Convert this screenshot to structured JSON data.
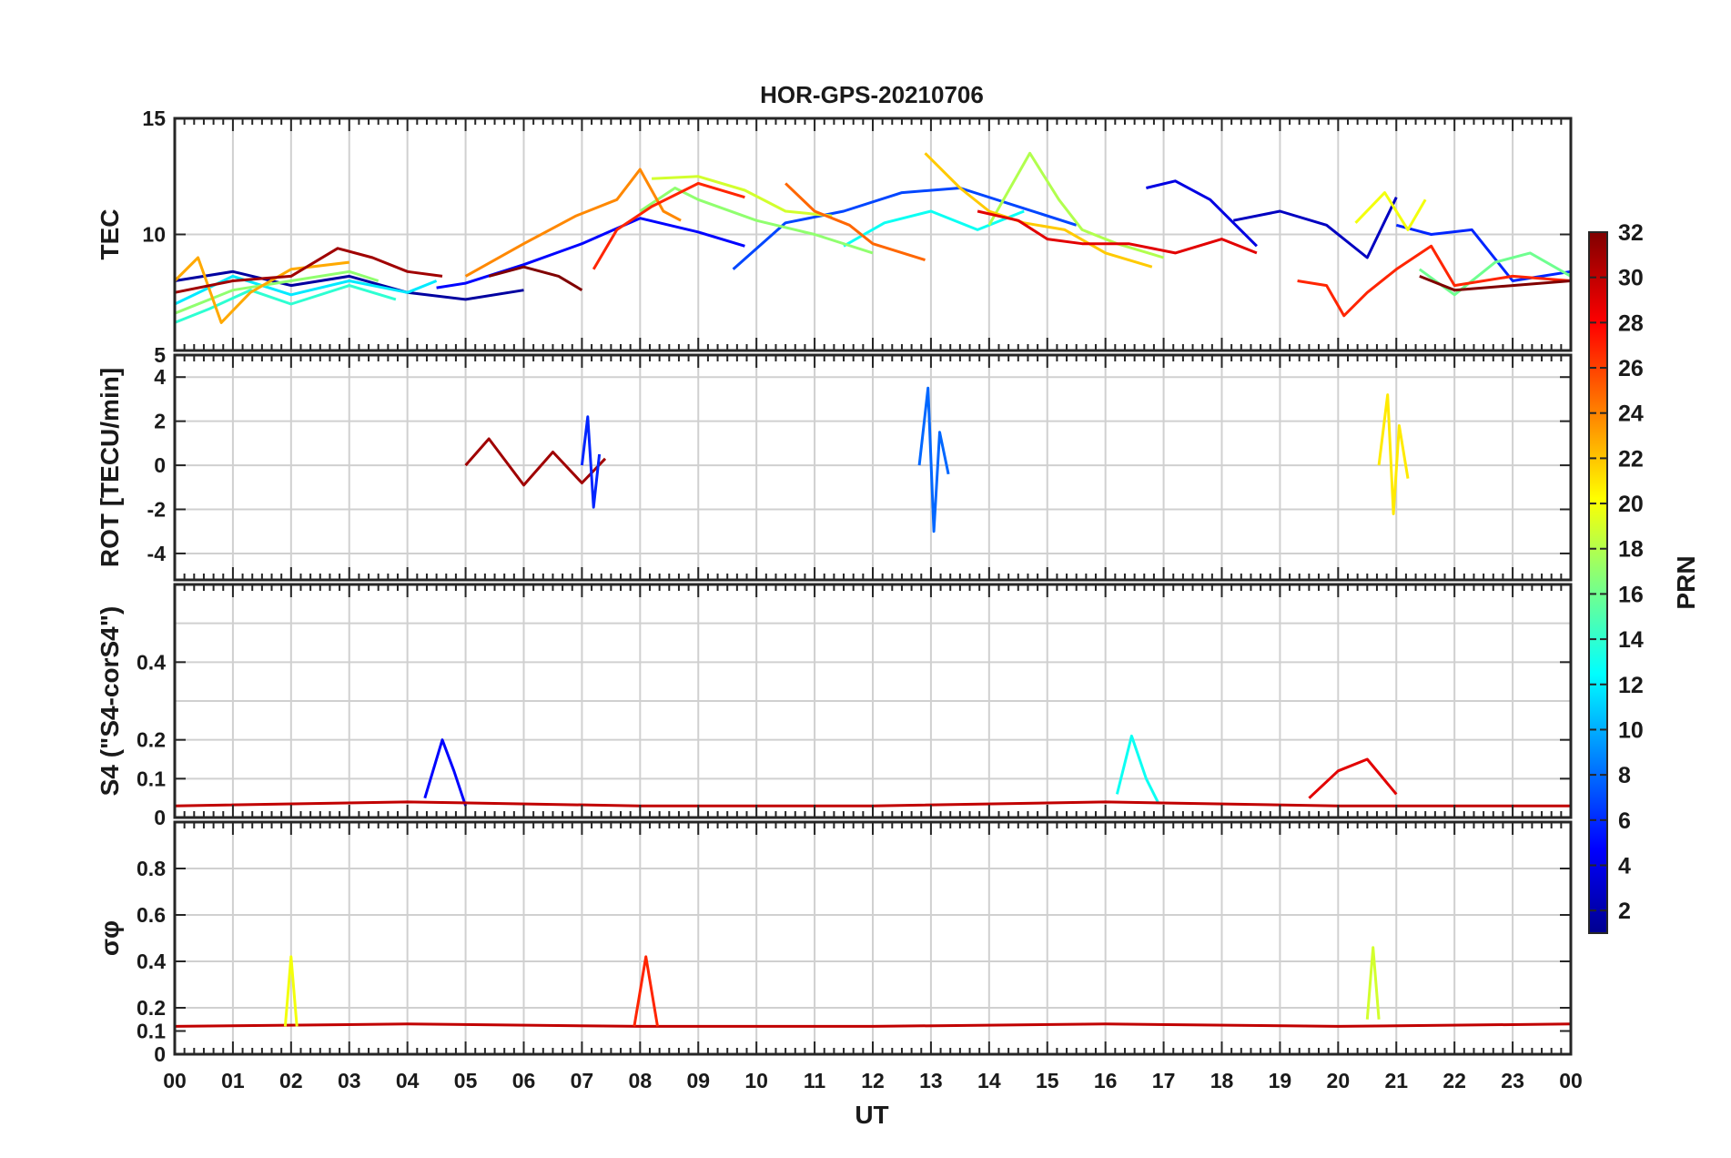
{
  "chart_data": {
    "type": "line",
    "title": "HOR-GPS-20210706",
    "xlabel": "UT",
    "x_range_hours": [
      0,
      24
    ],
    "x_tick_labels": [
      "00",
      "01",
      "02",
      "03",
      "04",
      "05",
      "06",
      "07",
      "08",
      "09",
      "10",
      "11",
      "12",
      "13",
      "14",
      "15",
      "16",
      "17",
      "18",
      "19",
      "20",
      "21",
      "22",
      "23",
      "00"
    ],
    "colorbar": {
      "label": "PRN",
      "range": [
        1,
        32
      ],
      "tick_labels": [
        "2",
        "4",
        "6",
        "8",
        "10",
        "12",
        "14",
        "16",
        "18",
        "20",
        "22",
        "24",
        "26",
        "28",
        "30",
        "32"
      ],
      "colormap": "jet"
    },
    "panels": [
      {
        "id": "tec",
        "ylabel": "TEC",
        "ylim": [
          5,
          15
        ],
        "y_ticks": [
          10,
          15
        ],
        "y_tick_labels": [
          "10",
          "15"
        ],
        "y_grid": [
          10
        ],
        "series": [
          {
            "name": "PRN 2",
            "prn": 2,
            "t": [
              0.0,
              1.0,
              2.0,
              3.0,
              4.0,
              5.0,
              6.0
            ],
            "v": [
              8.0,
              8.4,
              7.8,
              8.2,
              7.5,
              7.2,
              7.6
            ]
          },
          {
            "name": "PRN 5",
            "prn": 5,
            "t": [
              4.5,
              5.0,
              6.0,
              7.0,
              8.0,
              9.0,
              9.8
            ],
            "v": [
              7.7,
              7.9,
              8.7,
              9.6,
              10.7,
              10.1,
              9.5
            ]
          },
          {
            "name": "PRN 7",
            "prn": 7,
            "t": [
              9.6,
              10.5,
              11.5,
              12.5,
              13.5,
              14.5,
              15.5
            ],
            "v": [
              8.5,
              10.5,
              11.0,
              11.8,
              12.0,
              11.2,
              10.4
            ]
          },
          {
            "name": "PRN 4",
            "prn": 4,
            "t": [
              16.7,
              17.2,
              17.8,
              18.2,
              18.6
            ],
            "v": [
              12.0,
              12.3,
              11.5,
              10.5,
              9.5
            ]
          },
          {
            "name": "PRN 3",
            "prn": 3,
            "t": [
              18.2,
              19.0,
              19.8,
              20.5,
              21.0
            ],
            "v": [
              10.6,
              11.0,
              10.4,
              9.0,
              11.6
            ]
          },
          {
            "name": "PRN 6",
            "prn": 6,
            "t": [
              21.0,
              21.6,
              22.3,
              23.0,
              24.0
            ],
            "v": [
              10.4,
              10.0,
              10.2,
              8.0,
              8.4
            ]
          },
          {
            "name": "PRN 12",
            "prn": 12,
            "t": [
              0.0,
              1.0,
              2.0,
              3.0,
              4.0,
              4.5
            ],
            "v": [
              7.0,
              8.2,
              7.4,
              8.0,
              7.5,
              8.0
            ]
          },
          {
            "name": "PRN 14",
            "prn": 14,
            "t": [
              0.0,
              0.6,
              1.3,
              2.0,
              3.0,
              3.8
            ],
            "v": [
              6.2,
              6.8,
              7.6,
              7.0,
              7.8,
              7.2
            ]
          },
          {
            "name": "PRN 13",
            "prn": 13,
            "t": [
              11.5,
              12.2,
              13.0,
              13.8,
              14.6
            ],
            "v": [
              9.5,
              10.5,
              11.0,
              10.2,
              11.0
            ]
          },
          {
            "name": "PRN 17",
            "prn": 17,
            "t": [
              0.0,
              1.0,
              2.0,
              3.0,
              3.5
            ],
            "v": [
              6.6,
              7.6,
              8.0,
              8.4,
              8.0
            ]
          },
          {
            "name": "PRN 17b",
            "prn": 17,
            "t": [
              8.0,
              8.6,
              9.0,
              10.0,
              11.0,
              12.0
            ],
            "v": [
              11.0,
              12.0,
              11.5,
              10.6,
              10.0,
              9.2
            ]
          },
          {
            "name": "PRN 18",
            "prn": 18,
            "t": [
              14.0,
              14.7,
              15.2,
              15.6,
              16.2,
              17.0
            ],
            "v": [
              10.4,
              13.5,
              11.5,
              10.2,
              9.6,
              9.0
            ]
          },
          {
            "name": "PRN 16",
            "prn": 16,
            "t": [
              21.4,
              22.0,
              22.7,
              23.3,
              24.0
            ],
            "v": [
              8.5,
              7.4,
              8.8,
              9.2,
              8.2
            ]
          },
          {
            "name": "PRN 19",
            "prn": 19,
            "t": [
              8.2,
              9.0,
              9.8,
              10.5,
              11.3
            ],
            "v": [
              12.4,
              12.5,
              11.9,
              11.0,
              10.8
            ]
          },
          {
            "name": "PRN 20",
            "prn": 20,
            "t": [
              20.3,
              20.8,
              21.2,
              21.5
            ],
            "v": [
              10.5,
              11.8,
              10.2,
              11.5
            ]
          },
          {
            "name": "PRN 22",
            "prn": 22,
            "t": [
              12.9,
              13.5,
              14.0,
              14.6,
              15.3,
              16.0,
              16.8
            ],
            "v": [
              13.5,
              12.0,
              11.0,
              10.5,
              10.2,
              9.2,
              8.6
            ]
          },
          {
            "name": "PRN 23",
            "prn": 23,
            "t": [
              0.0,
              0.4,
              0.8,
              1.3,
              2.0,
              3.0
            ],
            "v": [
              8.0,
              9.0,
              6.2,
              7.5,
              8.5,
              8.8
            ]
          },
          {
            "name": "PRN 24",
            "prn": 24,
            "t": [
              5.0,
              6.0,
              6.9,
              7.6,
              8.0,
              8.4,
              8.7
            ],
            "v": [
              8.2,
              9.6,
              10.8,
              11.5,
              12.8,
              11.0,
              10.6
            ]
          },
          {
            "name": "PRN 25",
            "prn": 25,
            "t": [
              10.5,
              11.0,
              11.6,
              12.0,
              12.9
            ],
            "v": [
              12.2,
              11.0,
              10.4,
              9.6,
              8.9
            ]
          },
          {
            "name": "PRN 27",
            "prn": 27,
            "t": [
              7.2,
              7.6,
              8.2,
              9.0,
              9.8
            ],
            "v": [
              8.5,
              10.2,
              11.2,
              12.2,
              11.6
            ]
          },
          {
            "name": "PRN 27b",
            "prn": 27,
            "t": [
              19.3,
              19.8,
              20.1,
              20.5,
              21.0,
              21.6,
              22.0,
              23.0,
              24.0
            ],
            "v": [
              8.0,
              7.8,
              6.5,
              7.5,
              8.5,
              9.5,
              7.8,
              8.2,
              8.0
            ]
          },
          {
            "name": "PRN 29",
            "prn": 29,
            "t": [
              13.8,
              14.5,
              15.0,
              15.6,
              16.4,
              17.2,
              18.0,
              18.6
            ],
            "v": [
              11.0,
              10.6,
              9.8,
              9.6,
              9.6,
              9.2,
              9.8,
              9.2
            ]
          },
          {
            "name": "PRN 31",
            "prn": 31,
            "t": [
              0.0,
              1.0,
              2.0,
              2.8,
              3.4,
              4.0,
              4.6
            ],
            "v": [
              7.5,
              8.0,
              8.2,
              9.4,
              9.0,
              8.4,
              8.2
            ]
          },
          {
            "name": "PRN 32",
            "prn": 32,
            "t": [
              5.4,
              6.0,
              6.6,
              7.0
            ],
            "v": [
              8.2,
              8.6,
              8.2,
              7.6
            ]
          },
          {
            "name": "PRN 32b",
            "prn": 32,
            "t": [
              21.4,
              22.0,
              23.0,
              24.0
            ],
            "v": [
              8.2,
              7.6,
              7.8,
              8.0
            ]
          }
        ]
      },
      {
        "id": "rot",
        "ylabel": "ROT [TECU/min]",
        "ylim": [
          -5.2,
          5
        ],
        "y_ticks": [
          -4,
          -2,
          0,
          2,
          4,
          5
        ],
        "y_tick_labels": [
          "-4",
          "-2",
          "0",
          "2",
          "4",
          "5"
        ],
        "y_grid": [
          -4,
          -2,
          0,
          2,
          4
        ],
        "series": [
          {
            "name": "PRN 31",
            "prn": 31,
            "t": [
              5.0,
              5.4,
              6.0,
              6.5,
              7.0,
              7.4
            ],
            "v": [
              0.0,
              1.2,
              -0.9,
              0.6,
              -0.8,
              0.3
            ]
          },
          {
            "name": "PRN 8",
            "prn": 8,
            "t": [
              12.8,
              12.95,
              13.05,
              13.15,
              13.3
            ],
            "v": [
              0.0,
              3.5,
              -3.0,
              1.5,
              -0.4
            ]
          },
          {
            "name": "PRN 21",
            "prn": 21,
            "t": [
              20.7,
              20.85,
              20.95,
              21.05,
              21.2
            ],
            "v": [
              0.0,
              3.2,
              -2.2,
              1.8,
              -0.6
            ]
          },
          {
            "name": "PRN 6",
            "prn": 6,
            "t": [
              7.0,
              7.1,
              7.2,
              7.3
            ],
            "v": [
              0.0,
              2.2,
              -1.9,
              0.5
            ]
          }
        ]
      },
      {
        "id": "s4",
        "ylabel": "S4 (\"S4-corS4\")",
        "ylim": [
          0,
          0.6
        ],
        "y_ticks": [
          0,
          0.1,
          0.2,
          0.4
        ],
        "y_tick_labels": [
          "0",
          "0.1",
          "0.2",
          "0.4"
        ],
        "y_grid": [
          0.1,
          0.2,
          0.3,
          0.4,
          0.5
        ],
        "series": [
          {
            "name": "PRN 5",
            "prn": 5,
            "t": [
              4.3,
              4.6,
              4.8,
              5.0
            ],
            "v": [
              0.05,
              0.2,
              0.12,
              0.03
            ]
          },
          {
            "name": "PRN 13",
            "prn": 13,
            "t": [
              16.2,
              16.45,
              16.7,
              16.9
            ],
            "v": [
              0.06,
              0.21,
              0.1,
              0.04
            ]
          },
          {
            "name": "PRN 29",
            "prn": 29,
            "t": [
              19.5,
              20.0,
              20.5,
              21.0
            ],
            "v": [
              0.05,
              0.12,
              0.15,
              0.06
            ]
          },
          {
            "name": "PRN 30",
            "prn": 30,
            "t": [
              0.0,
              4.0,
              8.0,
              12.0,
              16.0,
              20.0,
              24.0
            ],
            "v": [
              0.03,
              0.04,
              0.03,
              0.03,
              0.04,
              0.03,
              0.03
            ]
          }
        ]
      },
      {
        "id": "sigma_phi",
        "ylabel": "σφ",
        "ylim": [
          0,
          1
        ],
        "y_ticks": [
          0,
          0.1,
          0.2,
          0.4,
          0.6,
          0.8
        ],
        "y_tick_labels": [
          "0",
          "0.1",
          "0.2",
          "0.4",
          "0.6",
          "0.8"
        ],
        "y_grid": [
          0.2,
          0.4,
          0.6,
          0.8
        ],
        "series": [
          {
            "name": "PRN 30",
            "prn": 30,
            "t": [
              0.0,
              4.0,
              8.0,
              12.0,
              16.0,
              20.0,
              24.0
            ],
            "v": [
              0.12,
              0.13,
              0.12,
              0.12,
              0.13,
              0.12,
              0.13
            ]
          },
          {
            "name": "PRN 20",
            "prn": 20,
            "t": [
              1.9,
              2.0,
              2.1
            ],
            "v": [
              0.12,
              0.42,
              0.12
            ]
          },
          {
            "name": "PRN 27",
            "prn": 27,
            "t": [
              7.9,
              8.1,
              8.3
            ],
            "v": [
              0.12,
              0.42,
              0.12
            ]
          },
          {
            "name": "PRN 19",
            "prn": 19,
            "t": [
              20.5,
              20.6,
              20.7
            ],
            "v": [
              0.15,
              0.46,
              0.15
            ]
          }
        ]
      }
    ]
  }
}
